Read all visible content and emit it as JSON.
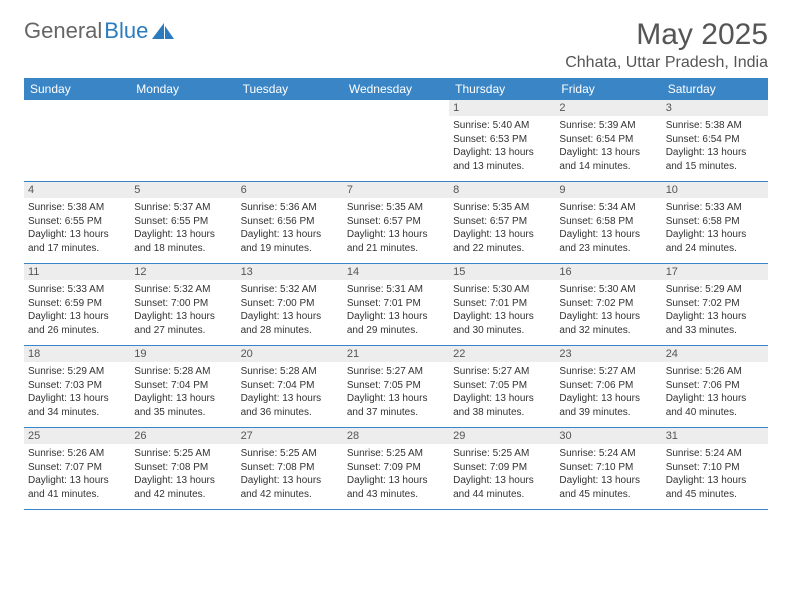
{
  "brand": {
    "part1": "General",
    "part2": "Blue"
  },
  "title": "May 2025",
  "location": "Chhata, Uttar Pradesh, India",
  "weekdays": [
    "Sunday",
    "Monday",
    "Tuesday",
    "Wednesday",
    "Thursday",
    "Friday",
    "Saturday"
  ],
  "colors": {
    "header_bg": "#3a85c6",
    "header_text": "#ffffff",
    "daynum_bg": "#ededed",
    "rule": "#3a85c6",
    "brand_gray": "#666666",
    "brand_blue": "#2a7cbf"
  },
  "labels": {
    "sunrise": "Sunrise:",
    "sunset": "Sunset:",
    "daylight": "Daylight:"
  },
  "weeks": [
    [
      {
        "pad": true
      },
      {
        "pad": true
      },
      {
        "pad": true
      },
      {
        "pad": true
      },
      {
        "n": "1",
        "sunrise": "5:40 AM",
        "sunset": "6:53 PM",
        "daylight": "13 hours and 13 minutes."
      },
      {
        "n": "2",
        "sunrise": "5:39 AM",
        "sunset": "6:54 PM",
        "daylight": "13 hours and 14 minutes."
      },
      {
        "n": "3",
        "sunrise": "5:38 AM",
        "sunset": "6:54 PM",
        "daylight": "13 hours and 15 minutes."
      }
    ],
    [
      {
        "n": "4",
        "sunrise": "5:38 AM",
        "sunset": "6:55 PM",
        "daylight": "13 hours and 17 minutes."
      },
      {
        "n": "5",
        "sunrise": "5:37 AM",
        "sunset": "6:55 PM",
        "daylight": "13 hours and 18 minutes."
      },
      {
        "n": "6",
        "sunrise": "5:36 AM",
        "sunset": "6:56 PM",
        "daylight": "13 hours and 19 minutes."
      },
      {
        "n": "7",
        "sunrise": "5:35 AM",
        "sunset": "6:57 PM",
        "daylight": "13 hours and 21 minutes."
      },
      {
        "n": "8",
        "sunrise": "5:35 AM",
        "sunset": "6:57 PM",
        "daylight": "13 hours and 22 minutes."
      },
      {
        "n": "9",
        "sunrise": "5:34 AM",
        "sunset": "6:58 PM",
        "daylight": "13 hours and 23 minutes."
      },
      {
        "n": "10",
        "sunrise": "5:33 AM",
        "sunset": "6:58 PM",
        "daylight": "13 hours and 24 minutes."
      }
    ],
    [
      {
        "n": "11",
        "sunrise": "5:33 AM",
        "sunset": "6:59 PM",
        "daylight": "13 hours and 26 minutes."
      },
      {
        "n": "12",
        "sunrise": "5:32 AM",
        "sunset": "7:00 PM",
        "daylight": "13 hours and 27 minutes."
      },
      {
        "n": "13",
        "sunrise": "5:32 AM",
        "sunset": "7:00 PM",
        "daylight": "13 hours and 28 minutes."
      },
      {
        "n": "14",
        "sunrise": "5:31 AM",
        "sunset": "7:01 PM",
        "daylight": "13 hours and 29 minutes."
      },
      {
        "n": "15",
        "sunrise": "5:30 AM",
        "sunset": "7:01 PM",
        "daylight": "13 hours and 30 minutes."
      },
      {
        "n": "16",
        "sunrise": "5:30 AM",
        "sunset": "7:02 PM",
        "daylight": "13 hours and 32 minutes."
      },
      {
        "n": "17",
        "sunrise": "5:29 AM",
        "sunset": "7:02 PM",
        "daylight": "13 hours and 33 minutes."
      }
    ],
    [
      {
        "n": "18",
        "sunrise": "5:29 AM",
        "sunset": "7:03 PM",
        "daylight": "13 hours and 34 minutes."
      },
      {
        "n": "19",
        "sunrise": "5:28 AM",
        "sunset": "7:04 PM",
        "daylight": "13 hours and 35 minutes."
      },
      {
        "n": "20",
        "sunrise": "5:28 AM",
        "sunset": "7:04 PM",
        "daylight": "13 hours and 36 minutes."
      },
      {
        "n": "21",
        "sunrise": "5:27 AM",
        "sunset": "7:05 PM",
        "daylight": "13 hours and 37 minutes."
      },
      {
        "n": "22",
        "sunrise": "5:27 AM",
        "sunset": "7:05 PM",
        "daylight": "13 hours and 38 minutes."
      },
      {
        "n": "23",
        "sunrise": "5:27 AM",
        "sunset": "7:06 PM",
        "daylight": "13 hours and 39 minutes."
      },
      {
        "n": "24",
        "sunrise": "5:26 AM",
        "sunset": "7:06 PM",
        "daylight": "13 hours and 40 minutes."
      }
    ],
    [
      {
        "n": "25",
        "sunrise": "5:26 AM",
        "sunset": "7:07 PM",
        "daylight": "13 hours and 41 minutes."
      },
      {
        "n": "26",
        "sunrise": "5:25 AM",
        "sunset": "7:08 PM",
        "daylight": "13 hours and 42 minutes."
      },
      {
        "n": "27",
        "sunrise": "5:25 AM",
        "sunset": "7:08 PM",
        "daylight": "13 hours and 42 minutes."
      },
      {
        "n": "28",
        "sunrise": "5:25 AM",
        "sunset": "7:09 PM",
        "daylight": "13 hours and 43 minutes."
      },
      {
        "n": "29",
        "sunrise": "5:25 AM",
        "sunset": "7:09 PM",
        "daylight": "13 hours and 44 minutes."
      },
      {
        "n": "30",
        "sunrise": "5:24 AM",
        "sunset": "7:10 PM",
        "daylight": "13 hours and 45 minutes."
      },
      {
        "n": "31",
        "sunrise": "5:24 AM",
        "sunset": "7:10 PM",
        "daylight": "13 hours and 45 minutes."
      }
    ]
  ]
}
